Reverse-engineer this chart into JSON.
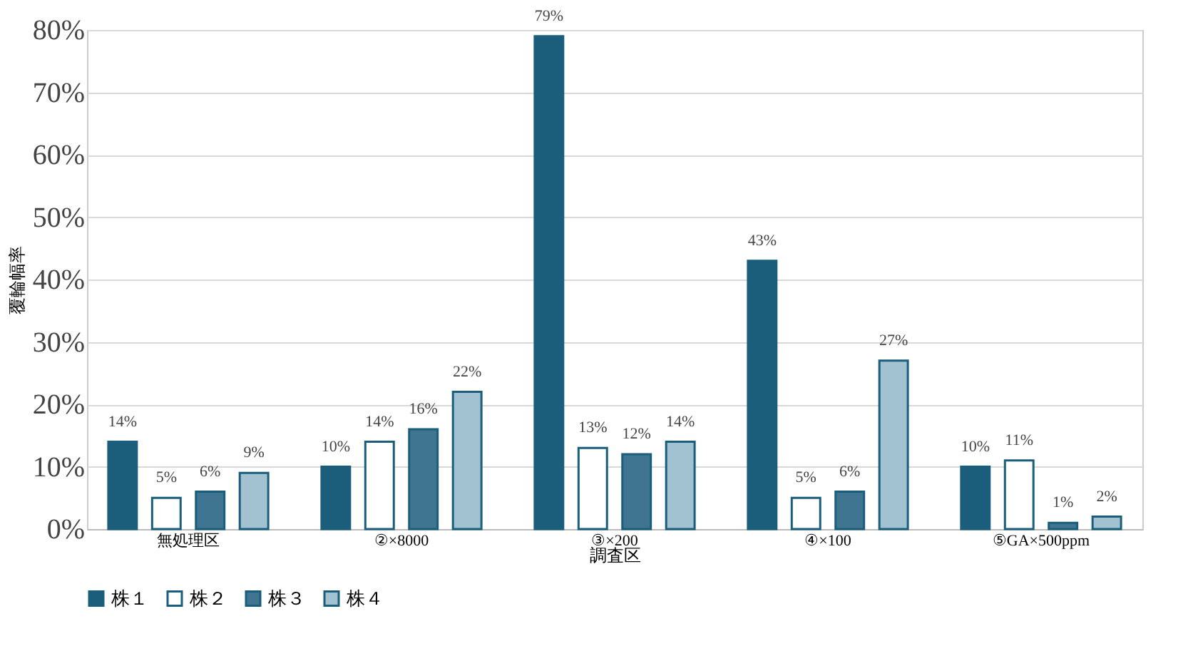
{
  "chart_data": {
    "type": "bar",
    "categories": [
      "無処理区",
      "②×8000",
      "③×200",
      "④×100",
      "⑤GA×500ppm"
    ],
    "xlabel": "調査区",
    "ylabel": "覆輪幅率",
    "series": [
      {
        "name": "株１",
        "color": "#1b5e7b",
        "values": [
          14,
          10,
          79,
          43,
          10
        ],
        "value_labels": [
          "14%",
          "10%",
          "79%",
          "43%",
          "10%"
        ]
      },
      {
        "name": "株２",
        "color": "#ffffff",
        "values": [
          5,
          14,
          13,
          5,
          11
        ],
        "value_labels": [
          "5%",
          "14%",
          "13%",
          "5%",
          "11%"
        ]
      },
      {
        "name": "株３",
        "color": "#3f7590",
        "values": [
          6,
          16,
          12,
          6,
          1
        ],
        "value_labels": [
          "6%",
          "16%",
          "12%",
          "6%",
          "1%"
        ]
      },
      {
        "name": "株４",
        "color": "#a3c2d1",
        "values": [
          9,
          22,
          14,
          27,
          2
        ],
        "value_labels": [
          "9%",
          "22%",
          "14%",
          "27%",
          "2%"
        ]
      }
    ],
    "ylim": [
      0,
      80
    ],
    "yticks": [
      {
        "value": 0,
        "label": "0%"
      },
      {
        "value": 10,
        "label": "10%"
      },
      {
        "value": 20,
        "label": "20%"
      },
      {
        "value": 30,
        "label": "30%"
      },
      {
        "value": 40,
        "label": "40%"
      },
      {
        "value": 50,
        "label": "50%"
      },
      {
        "value": 60,
        "label": "60%"
      },
      {
        "value": 70,
        "label": "70%"
      },
      {
        "value": 80,
        "label": "80%"
      }
    ],
    "grid": "y",
    "legend": "bottom"
  }
}
